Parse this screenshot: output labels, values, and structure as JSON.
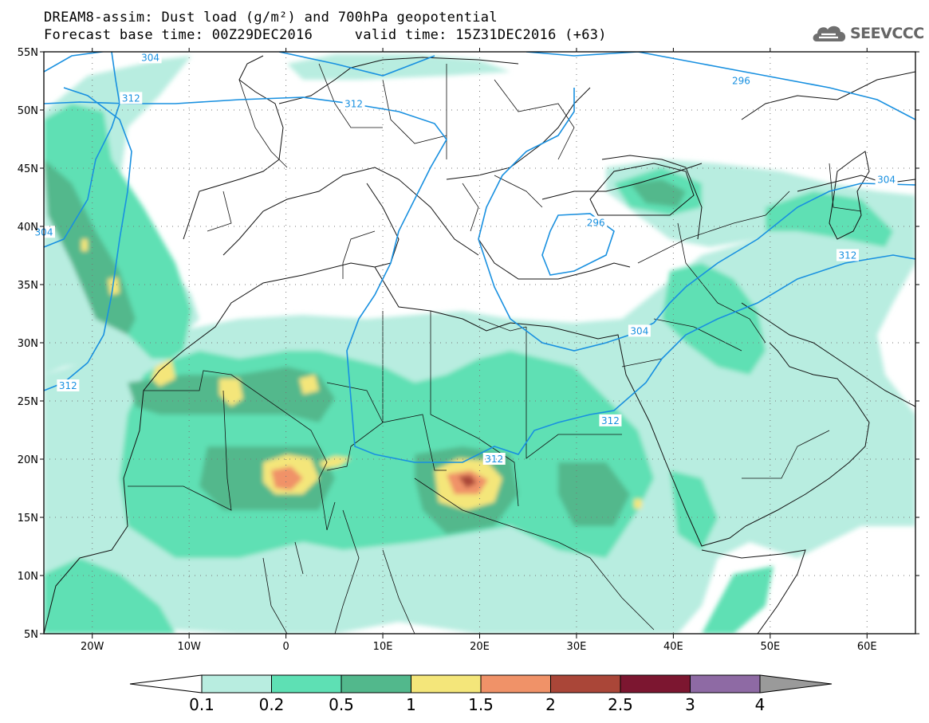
{
  "title_line1": "DREAM8-assim: Dust load (g/m²) and 700hPa geopotential",
  "title_line2": "Forecast base time: 00Z29DEC2016     valid time: 15Z31DEC2016 (+63)",
  "logo_text": "SEEVCCC",
  "axes": {
    "lon_labels": [
      "20W",
      "10W",
      "0",
      "10E",
      "20E",
      "30E",
      "40E",
      "50E",
      "60E"
    ],
    "lon_values": [
      -20,
      -10,
      0,
      10,
      20,
      30,
      40,
      50,
      60
    ],
    "lat_labels": [
      "55N",
      "50N",
      "45N",
      "40N",
      "35N",
      "30N",
      "25N",
      "20N",
      "15N",
      "10N",
      "5N"
    ],
    "lat_values": [
      55,
      50,
      45,
      40,
      35,
      30,
      25,
      20,
      15,
      10,
      5
    ],
    "lon_range": [
      -25,
      65
    ],
    "lat_range": [
      5,
      55
    ]
  },
  "contour_labels": [
    {
      "text": "304",
      "lon": -14,
      "lat": 54.5
    },
    {
      "text": "312",
      "lon": -16,
      "lat": 51
    },
    {
      "text": "312",
      "lon": 7,
      "lat": 50.5
    },
    {
      "text": "296",
      "lon": 47,
      "lat": 52.5
    },
    {
      "text": "304",
      "lon": 62,
      "lat": 44
    },
    {
      "text": "296",
      "lon": 32,
      "lat": 40.3
    },
    {
      "text": "304",
      "lon": -25,
      "lat": 39.5
    },
    {
      "text": "312",
      "lon": 58,
      "lat": 37.5
    },
    {
      "text": "304",
      "lon": 36.5,
      "lat": 31
    },
    {
      "text": "312",
      "lon": -22.5,
      "lat": 26.3
    },
    {
      "text": "312",
      "lon": 33.5,
      "lat": 23.3
    },
    {
      "text": "312",
      "lon": 21.5,
      "lat": 20
    }
  ],
  "colorbar": {
    "ticks": [
      "0.1",
      "0.2",
      "0.5",
      "1",
      "1.5",
      "2",
      "2.5",
      "3",
      "4"
    ],
    "colors": [
      "#b8ede0",
      "#5ee0b4",
      "#52b88c",
      "#f4e67a",
      "#f09268",
      "#aa4638",
      "#7c1630",
      "#8e6aa4"
    ],
    "low_extend_color": "#ffffff",
    "high_extend_color": "#9a9a9a"
  }
}
